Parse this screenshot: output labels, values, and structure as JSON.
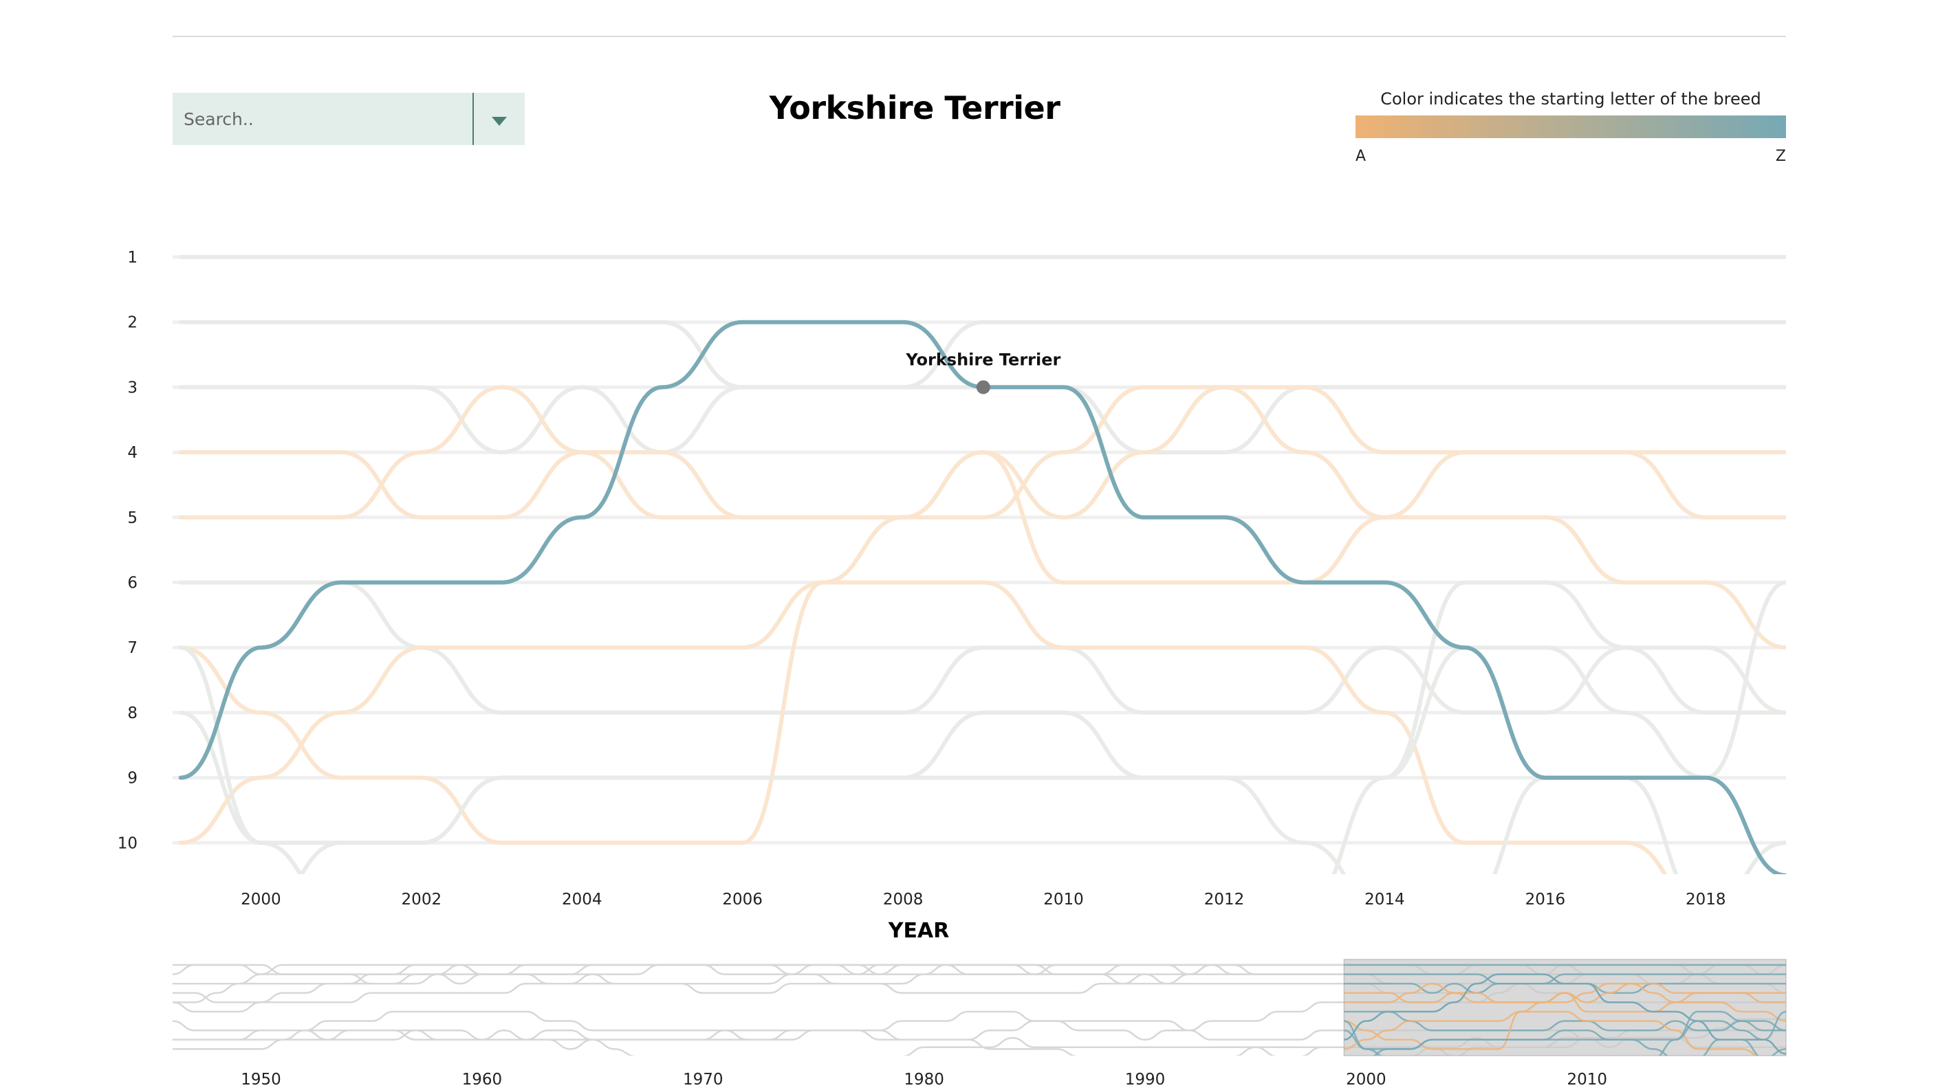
{
  "search": {
    "placeholder": "Search.."
  },
  "header": {
    "title": "Yorkshire Terrier"
  },
  "legend": {
    "caption": "Color indicates the starting letter of the breed",
    "start_label": "A",
    "end_label": "Z",
    "start_color": "#efb274",
    "end_color": "#76a9b5"
  },
  "colors": {
    "highlight": "#7aaab5",
    "muted": "#e9ebe8",
    "muted_orange": "#fbe5cf",
    "grid": "#efefef",
    "marker": "#777777",
    "brush": "#c9c9c9"
  },
  "chart_data": {
    "type": "line",
    "title": "Yorkshire Terrier",
    "xlabel": "YEAR",
    "ylabel": "",
    "x_ticks": [
      2000,
      2002,
      2004,
      2006,
      2008,
      2010,
      2012,
      2014,
      2016,
      2018
    ],
    "y_ticks": [
      1,
      2,
      3,
      4,
      5,
      6,
      7,
      8,
      9,
      10
    ],
    "xlim": [
      1998.9,
      2019
    ],
    "ylim": [
      1,
      10.5
    ],
    "highlight": {
      "name": "Yorkshire Terrier",
      "marker_year": 2009,
      "marker_rank": 3,
      "x": [
        1999,
        2000,
        2001,
        2002,
        2003,
        2004,
        2005,
        2006,
        2007,
        2008,
        2009,
        2010,
        2011,
        2012,
        2013,
        2014,
        2015,
        2016,
        2017,
        2018,
        2019
      ],
      "y": [
        9,
        7,
        6,
        6,
        6,
        5,
        3,
        2,
        2,
        2,
        3,
        3,
        5,
        5,
        6,
        6,
        7,
        9,
        9,
        9,
        10.5
      ]
    },
    "background_series": [
      {
        "tone": "grey",
        "y": [
          1,
          1,
          1,
          1,
          1,
          1,
          1,
          1,
          1,
          1,
          1,
          1,
          1,
          1,
          1,
          1,
          1,
          1,
          1,
          1,
          1
        ]
      },
      {
        "tone": "grey",
        "y": [
          2,
          2,
          2,
          2,
          2,
          2,
          2,
          3,
          3,
          3,
          2,
          2,
          2,
          2,
          2,
          2,
          2,
          2,
          2,
          2,
          2
        ]
      },
      {
        "tone": "grey",
        "y": [
          3,
          3,
          3,
          3,
          4,
          3,
          4,
          3,
          3,
          3,
          3,
          3,
          4,
          4,
          3,
          3,
          3,
          3,
          3,
          3,
          3
        ]
      },
      {
        "tone": "orange",
        "y": [
          4,
          4,
          4,
          5,
          5,
          4,
          5,
          5,
          5,
          5,
          5,
          4,
          3,
          3,
          3,
          4,
          4,
          4,
          4,
          5,
          5
        ]
      },
      {
        "tone": "orange",
        "y": [
          5,
          5,
          5,
          4,
          3,
          4,
          4,
          5,
          5,
          5,
          4,
          5,
          4,
          3,
          4,
          5,
          5,
          5,
          6,
          6,
          7
        ]
      },
      {
        "tone": "grey",
        "y": [
          6,
          6,
          6,
          7,
          8,
          8,
          8,
          8,
          8,
          8,
          7,
          7,
          8,
          8,
          8,
          7,
          8,
          8,
          7,
          7,
          8
        ]
      },
      {
        "tone": "orange",
        "y": [
          7,
          8,
          9,
          9,
          10,
          10,
          10,
          10,
          6,
          6,
          6,
          7,
          7,
          7,
          7,
          8,
          10,
          10,
          10,
          11,
          11
        ]
      },
      {
        "tone": "grey",
        "y": [
          8,
          10,
          10,
          10,
          9,
          9,
          9,
          9,
          9,
          9,
          9,
          9,
          9,
          9,
          10,
          11,
          11,
          11,
          11,
          11,
          11
        ]
      },
      {
        "tone": "orange",
        "y": [
          10,
          9,
          8,
          7,
          7,
          7,
          7,
          7,
          6,
          5,
          4,
          6,
          6,
          6,
          6,
          5,
          4,
          4,
          4,
          4,
          4
        ]
      },
      {
        "tone": "grey",
        "y": [
          11,
          11,
          10,
          10,
          9,
          9,
          9,
          9,
          9,
          9,
          8,
          8,
          9,
          9,
          9,
          9,
          7,
          7,
          8,
          9,
          6
        ]
      },
      {
        "tone": "grey",
        "y": [
          11,
          11,
          11,
          11,
          11,
          11,
          11,
          11,
          11,
          11,
          11,
          11,
          11,
          11,
          11,
          9,
          6,
          6,
          7,
          8,
          8
        ]
      },
      {
        "tone": "grey",
        "y": [
          7,
          10,
          11,
          11,
          11,
          11,
          11,
          11,
          11,
          11,
          11,
          11,
          11,
          11,
          11,
          11,
          11,
          9,
          9,
          11,
          10
        ]
      }
    ],
    "overview": {
      "x_ticks": [
        1950,
        1960,
        1970,
        1980,
        1990,
        2000,
        2010
      ],
      "xlim": [
        1946,
        2019
      ],
      "brush_range": [
        1999,
        2019
      ]
    }
  }
}
